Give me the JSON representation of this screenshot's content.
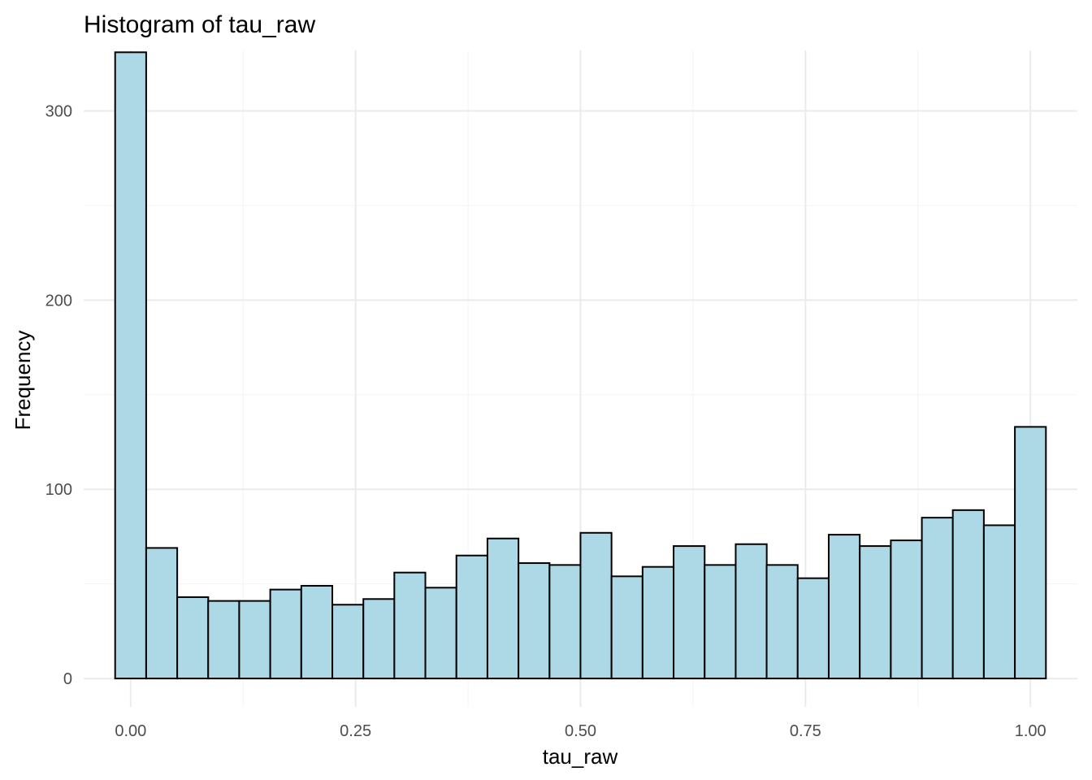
{
  "chart_data": {
    "type": "bar",
    "title": "Histogram of tau_raw",
    "xlabel": "tau_raw",
    "ylabel": "Frequency",
    "bar_color": "#add8e6",
    "bar_outline": "#000000",
    "grid": true,
    "xlim": [
      -0.0522,
      1.0522
    ],
    "ylim": [
      -15,
      332
    ],
    "x_ticks": [
      "0.00",
      "0.25",
      "0.50",
      "0.75",
      "1.00"
    ],
    "x_tick_values": [
      0,
      0.25,
      0.5,
      0.75,
      1
    ],
    "y_ticks": [
      "0",
      "100",
      "200",
      "300"
    ],
    "y_tick_values": [
      0,
      100,
      200,
      300
    ],
    "bin_width": 0.0345,
    "bin_centers": [
      0,
      0.0345,
      0.069,
      0.1034,
      0.1379,
      0.1724,
      0.2069,
      0.2414,
      0.2759,
      0.3103,
      0.3448,
      0.3793,
      0.4138,
      0.4483,
      0.4828,
      0.5172,
      0.5517,
      0.5862,
      0.6207,
      0.6552,
      0.6897,
      0.7241,
      0.7586,
      0.7931,
      0.8276,
      0.8621,
      0.8966,
      0.931,
      0.9655,
      1.0
    ],
    "values": [
      331,
      69,
      43,
      41,
      41,
      47,
      49,
      39,
      42,
      56,
      48,
      65,
      74,
      61,
      60,
      77,
      54,
      59,
      70,
      60,
      71,
      60,
      53,
      76,
      70,
      73,
      85,
      89,
      81,
      133
    ]
  }
}
